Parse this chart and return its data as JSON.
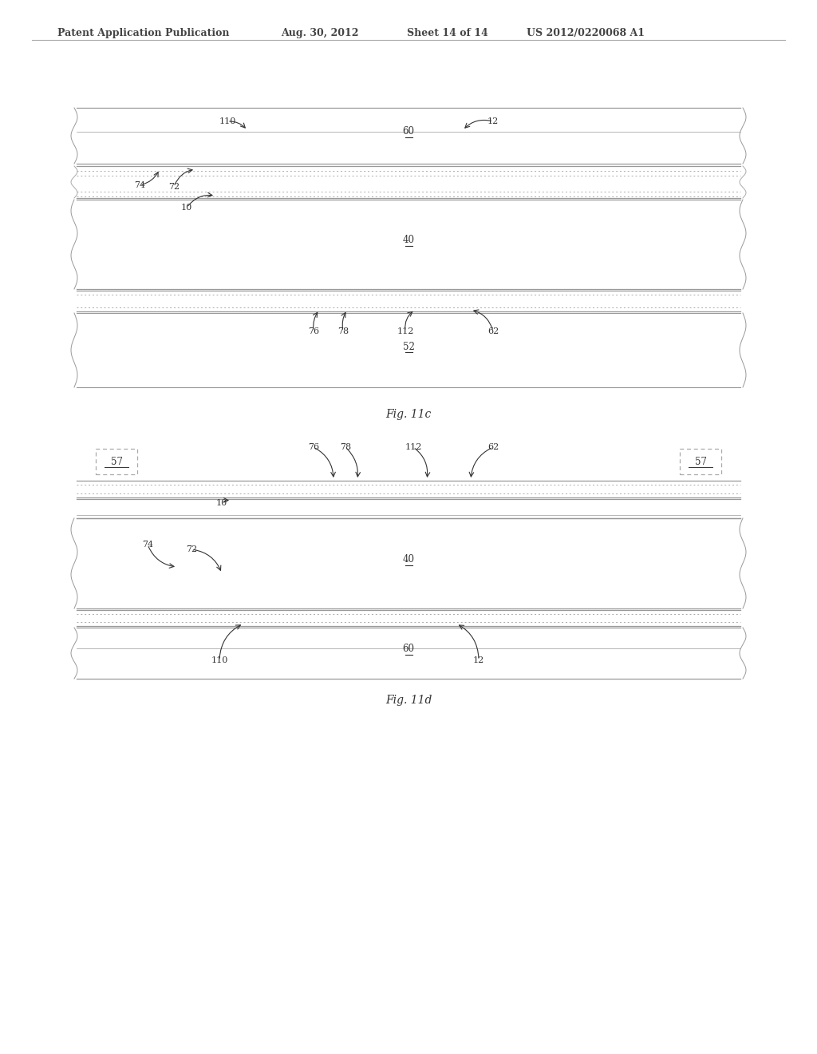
{
  "bg_color": "#ffffff",
  "header_text": "Patent Application Publication",
  "header_date": "Aug. 30, 2012",
  "header_sheet": "Sheet 14 of 14",
  "header_patent": "US 2012/0220068 A1",
  "text_color": "#444444",
  "line_color": "#999999",
  "dot_color": "#aaaaaa",
  "dark_color": "#333333"
}
